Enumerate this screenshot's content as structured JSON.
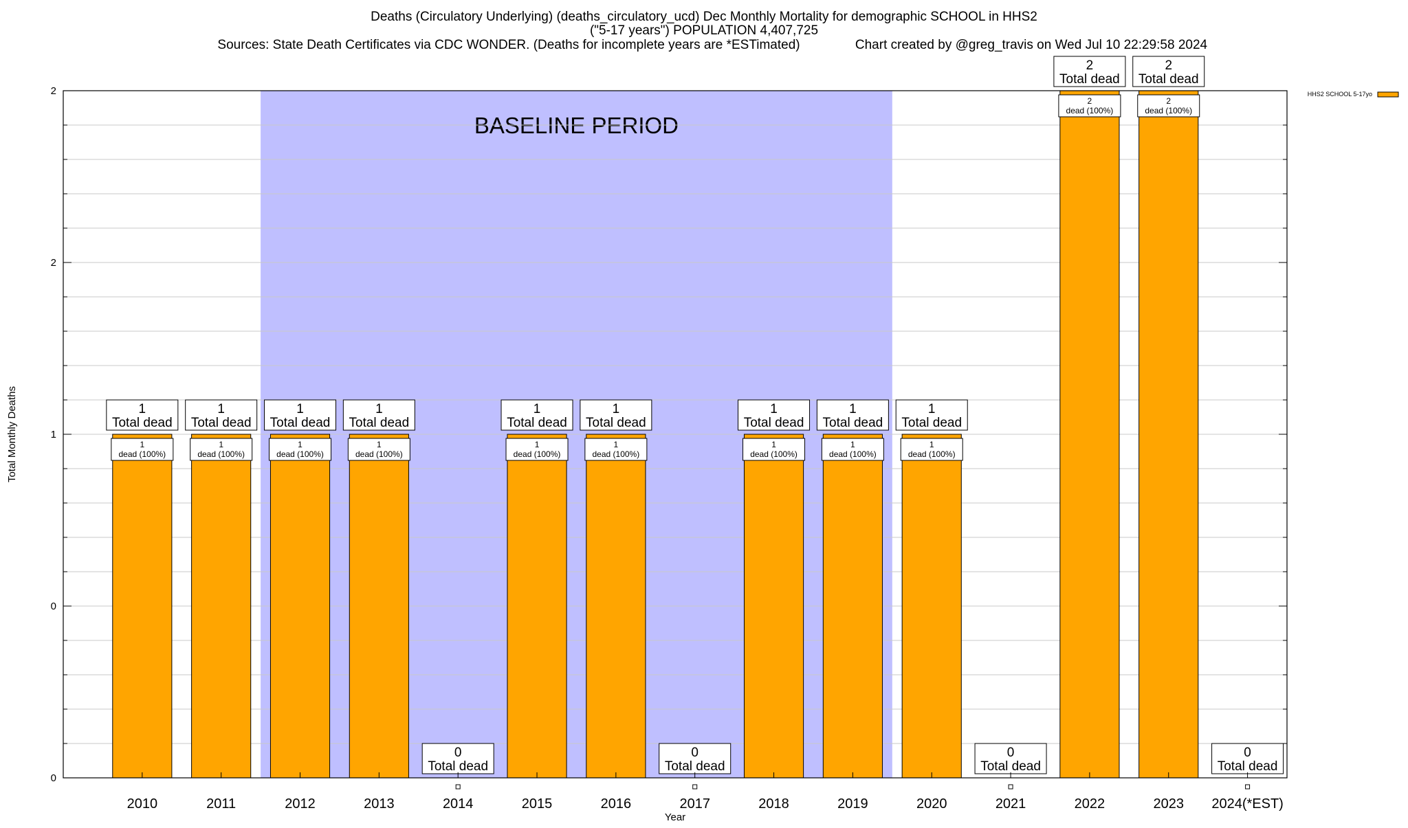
{
  "chart_data": {
    "type": "bar",
    "title_lines": [
      "Deaths (Circulatory Underlying) (deaths_circulatory_ucd) Dec Monthly Mortality for demographic SCHOOL in HHS2",
      "(\"5-17 years\") POPULATION 4,407,725"
    ],
    "sources": "Sources: State Death Certificates via CDC WONDER. (Deaths for incomplete years are *ESTimated)",
    "credit": "Chart created by @greg_travis on Wed Jul 10 22:29:58 2024",
    "xlabel": "Year",
    "ylabel": "Total Monthly Deaths",
    "ylim": [
      0,
      2
    ],
    "y_tick_labels": [
      "0",
      "0",
      "1",
      "2",
      "2"
    ],
    "y_tick_values": [
      0,
      0.5,
      1,
      1.5,
      2
    ],
    "grid": true,
    "legend_position": "top-right",
    "categories": [
      "2010",
      "2011",
      "2012",
      "2013",
      "2014",
      "2015",
      "2016",
      "2017",
      "2018",
      "2019",
      "2020",
      "2021",
      "2022",
      "2023",
      "2024(*EST)"
    ],
    "series": [
      {
        "name": "HHS2 SCHOOL 5-17yo",
        "color": "#FFA500",
        "values": [
          1,
          1,
          1,
          1,
          0,
          1,
          1,
          0,
          1,
          1,
          1,
          0,
          2,
          2,
          0
        ],
        "segment_labels": [
          "1\ndead (100%)",
          "1\ndead (100%)",
          "1\ndead (100%)",
          "1\ndead (100%)",
          "",
          "1\ndead (100%)",
          "1\ndead (100%)",
          "",
          "1\ndead (100%)",
          "1\ndead (100%)",
          "1\ndead (100%)",
          "",
          "2\ndead (100%)",
          "2\ndead (100%)",
          ""
        ]
      }
    ],
    "total_labels": [
      "1\nTotal dead",
      "1\nTotal dead",
      "1\nTotal dead",
      "1\nTotal dead",
      "0\nTotal dead",
      "1\nTotal dead",
      "1\nTotal dead",
      "0\nTotal dead",
      "1\nTotal dead",
      "1\nTotal dead",
      "1\nTotal dead",
      "0\nTotal dead",
      "2\nTotal dead",
      "2\nTotal dead",
      "0\nTotal dead"
    ],
    "shaded_region": {
      "label": "BASELINE PERIOD",
      "start_category": "2012",
      "end_category": "2019",
      "color": "#BFBFFF"
    }
  }
}
